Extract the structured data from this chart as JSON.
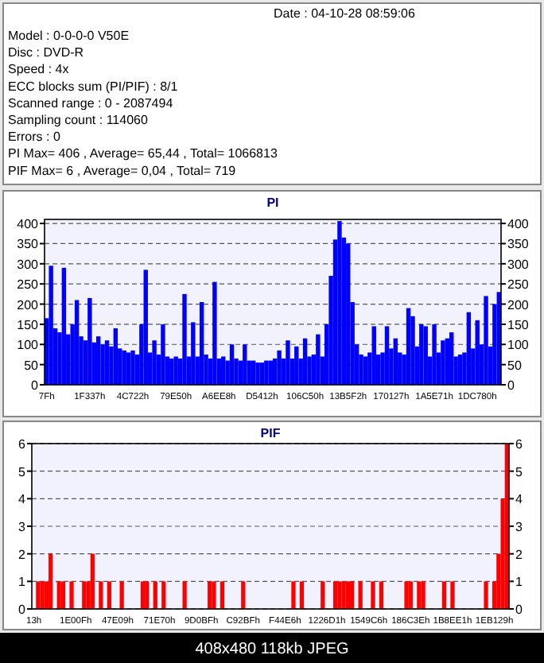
{
  "chart_data": [
    {
      "type": "other",
      "annotations": [
        "Date : 04-10-28 08:59:06",
        "Model : 0-0-0-0  V50E",
        "Disc : DVD-R",
        "Speed : 4x",
        "ECC blocks sum (PI/PIF) : 8/1",
        "Scanned range : 0 - 2087494",
        "Sampling count : 114060",
        "Errors : 0",
        "PI Max= 406 , Average= 65,44 , Total= 1066813",
        "PIF Max= 6 , Average= 0,04 , Total= 719"
      ]
    },
    {
      "type": "bar",
      "title": "PI",
      "color": "#0000ff",
      "grid": "y",
      "ylim": [
        0,
        410
      ],
      "yticks": [
        0,
        50,
        100,
        150,
        200,
        250,
        300,
        350,
        400
      ],
      "y2lim": [
        0,
        410
      ],
      "y2ticks": [
        0,
        50,
        100,
        150,
        200,
        250,
        300,
        350,
        400
      ],
      "categories": [
        "7Fh",
        null,
        null,
        null,
        null,
        null,
        null,
        null,
        null,
        null,
        "1F337h",
        null,
        null,
        null,
        null,
        null,
        null,
        null,
        null,
        null,
        "4C722h",
        null,
        null,
        null,
        null,
        null,
        null,
        null,
        null,
        null,
        "79E50h",
        null,
        null,
        null,
        null,
        null,
        null,
        null,
        null,
        null,
        "A6EE8h",
        null,
        null,
        null,
        null,
        null,
        null,
        null,
        null,
        null,
        "D5412h",
        null,
        null,
        null,
        null,
        null,
        null,
        null,
        null,
        null,
        "106C50h",
        null,
        null,
        null,
        null,
        null,
        null,
        null,
        null,
        null,
        "13B5F2h",
        null,
        null,
        null,
        null,
        null,
        null,
        null,
        null,
        null,
        "170127h",
        null,
        null,
        null,
        null,
        null,
        null,
        null,
        null,
        null,
        "1A5E71h",
        null,
        null,
        null,
        null,
        null,
        null,
        null,
        null,
        null,
        "1DC780h",
        null,
        null,
        null,
        null,
        null
      ],
      "values": [
        165,
        295,
        140,
        130,
        290,
        125,
        150,
        210,
        120,
        110,
        215,
        105,
        120,
        100,
        110,
        95,
        140,
        90,
        85,
        80,
        85,
        75,
        150,
        285,
        80,
        110,
        75,
        150,
        70,
        65,
        70,
        65,
        225,
        70,
        155,
        70,
        205,
        75,
        65,
        255,
        65,
        70,
        60,
        100,
        65,
        60,
        100,
        60,
        60,
        55,
        55,
        60,
        60,
        65,
        85,
        65,
        110,
        65,
        95,
        65,
        115,
        70,
        75,
        125,
        70,
        150,
        270,
        360,
        406,
        365,
        350,
        205,
        100,
        75,
        70,
        80,
        145,
        75,
        80,
        145,
        90,
        115,
        80,
        75,
        190,
        170,
        95,
        150,
        145,
        70,
        150,
        80,
        110,
        115,
        130,
        70,
        75,
        80,
        180,
        90,
        160,
        100,
        220,
        95,
        200,
        230
      ]
    },
    {
      "type": "bar",
      "title": "PIF",
      "color": "#ff0000",
      "grid": "y",
      "ylim": [
        0,
        6
      ],
      "yticks": [
        0,
        1,
        2,
        3,
        4,
        5,
        6
      ],
      "y2lim": [
        0,
        6
      ],
      "y2ticks": [
        0,
        1,
        2,
        3,
        4,
        5,
        6
      ],
      "annotations": [
        "408x480 118kb JPEG"
      ],
      "categories": [
        "13h",
        null,
        null,
        null,
        null,
        null,
        null,
        null,
        null,
        null,
        "1E00Fh",
        null,
        null,
        null,
        null,
        null,
        null,
        null,
        null,
        null,
        "47E09h",
        null,
        null,
        null,
        null,
        null,
        null,
        null,
        null,
        null,
        "71E70h",
        null,
        null,
        null,
        null,
        null,
        null,
        null,
        null,
        null,
        "9D0BFh",
        null,
        null,
        null,
        null,
        null,
        null,
        null,
        null,
        null,
        "C92BFh",
        null,
        null,
        null,
        null,
        null,
        null,
        null,
        null,
        null,
        "F44E6h",
        null,
        null,
        null,
        null,
        null,
        null,
        null,
        null,
        null,
        "1226D1h",
        null,
        null,
        null,
        null,
        null,
        null,
        null,
        null,
        null,
        "1549C6h",
        null,
        null,
        null,
        null,
        null,
        null,
        null,
        null,
        null,
        "186C3Eh",
        null,
        null,
        null,
        null,
        null,
        null,
        null,
        null,
        null,
        "1B8EE1h",
        null,
        null,
        null,
        null,
        null,
        null,
        null,
        null,
        null,
        "1EB129h",
        null,
        null,
        null
      ],
      "values": [
        0,
        1,
        1,
        1,
        2,
        0,
        1,
        1,
        0,
        1,
        0,
        0,
        1,
        1,
        2,
        0,
        1,
        0,
        1,
        0,
        0,
        1,
        0,
        0,
        0,
        0,
        1,
        1,
        0,
        1,
        0,
        1,
        0,
        0,
        0,
        0,
        1,
        0,
        0,
        0,
        0,
        0,
        1,
        1,
        0,
        1,
        0,
        0,
        0,
        0,
        1,
        0,
        0,
        0,
        0,
        0,
        0,
        0,
        0,
        0,
        0,
        0,
        1,
        0,
        1,
        0,
        0,
        0,
        0,
        1,
        0,
        0,
        1,
        1,
        1,
        1,
        1,
        0,
        1,
        0,
        0,
        1,
        0,
        1,
        0,
        0,
        0,
        0,
        0,
        1,
        1,
        0,
        1,
        1,
        0,
        0,
        0,
        0,
        1,
        0,
        1,
        0,
        0,
        0,
        0,
        0,
        0,
        0,
        1,
        0,
        1,
        2,
        4,
        6
      ]
    }
  ]
}
